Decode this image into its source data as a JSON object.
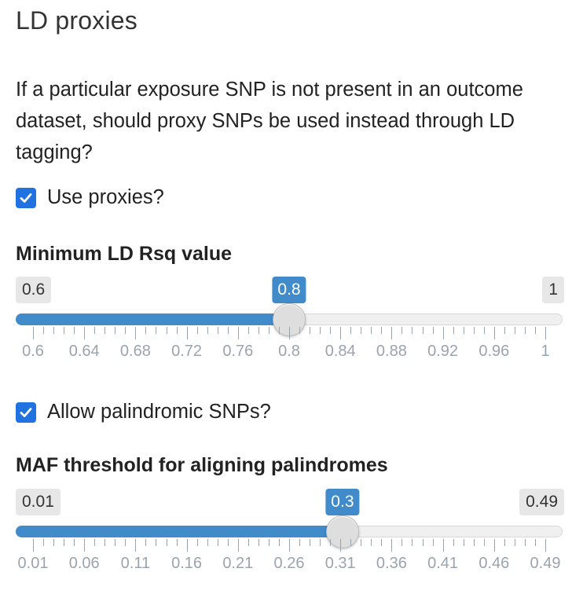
{
  "section_title": "LD proxies",
  "description": "If a particular exposure SNP is not present in an outcome dataset, should proxy SNPs be used instead through LD tagging?",
  "use_proxies": {
    "label": "Use proxies?",
    "checked": true
  },
  "ld_slider": {
    "label": "Minimum LD Rsq value",
    "min": 0.6,
    "max": 1,
    "value": 0.8,
    "min_label": "0.6",
    "max_label": "1",
    "value_label": "0.8",
    "ticks": [
      "0.6",
      "0.64",
      "0.68",
      "0.72",
      "0.76",
      "0.8",
      "0.84",
      "0.88",
      "0.92",
      "0.96",
      "1"
    ]
  },
  "allow_palindromic": {
    "label": "Allow palindromic SNPs?",
    "checked": true
  },
  "maf_slider": {
    "label": "MAF threshold for aligning palindromes",
    "min": 0.01,
    "max": 0.49,
    "value": 0.3,
    "min_label": "0.01",
    "max_label": "0.49",
    "value_label": "0.3",
    "ticks": [
      "0.01",
      "0.06",
      "0.11",
      "0.16",
      "0.21",
      "0.26",
      "0.31",
      "0.36",
      "0.41",
      "0.46",
      "0.49"
    ]
  },
  "colors": {
    "accent": "#428bca",
    "checkbox": "#1f72e0"
  }
}
